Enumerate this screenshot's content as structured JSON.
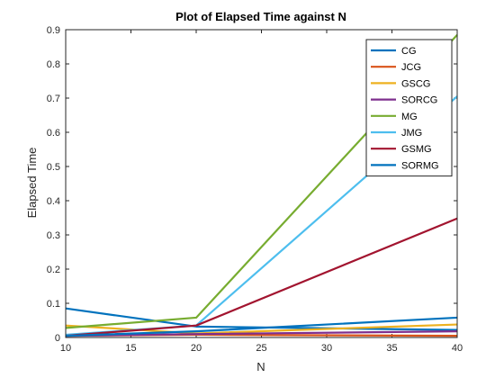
{
  "chart_data": {
    "type": "line",
    "title": "Plot of Elapsed Time against N",
    "xlabel": "N",
    "ylabel": "Elapsed Time",
    "xlim": [
      10,
      40
    ],
    "ylim": [
      0,
      0.9
    ],
    "xticks": [
      10,
      15,
      20,
      25,
      30,
      35,
      40
    ],
    "yticks": [
      0,
      0.1,
      0.2,
      0.3,
      0.4,
      0.5,
      0.6,
      0.7,
      0.8,
      0.9
    ],
    "x": [
      10,
      20,
      40
    ],
    "grid": false,
    "legend_position": "top-right",
    "series": [
      {
        "name": "CG",
        "color": "#0072BD",
        "values": [
          0.085,
          0.032,
          0.022
        ]
      },
      {
        "name": "JCG",
        "color": "#D95319",
        "values": [
          0.005,
          0.008,
          0.005
        ]
      },
      {
        "name": "GSCG",
        "color": "#EDB120",
        "values": [
          0.035,
          0.012,
          0.038
        ]
      },
      {
        "name": "SORCG",
        "color": "#7E2F8E",
        "values": [
          0.005,
          0.01,
          0.018
        ]
      },
      {
        "name": "MG",
        "color": "#77AC30",
        "values": [
          0.028,
          0.058,
          0.885
        ]
      },
      {
        "name": "JMG",
        "color": "#4DBEEE",
        "values": [
          0.008,
          0.035,
          0.705
        ]
      },
      {
        "name": "GSMG",
        "color": "#A2142F",
        "values": [
          0.005,
          0.035,
          0.348
        ]
      },
      {
        "name": "SORMG",
        "color": "#0072BD",
        "values": [
          0.005,
          0.018,
          0.058
        ]
      }
    ]
  }
}
